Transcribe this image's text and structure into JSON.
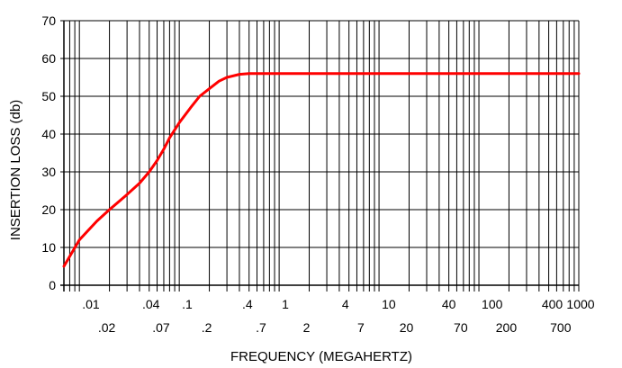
{
  "chart_data": {
    "type": "line",
    "x_scale": "log",
    "xlim": [
      0.007,
      1000
    ],
    "ylim": [
      0,
      70
    ],
    "grid": true,
    "xlabel": "FREQUENCY (MEGAHERTZ)",
    "ylabel": "INSERTION LOSS (db)",
    "y_ticks": [
      0,
      10,
      20,
      30,
      40,
      50,
      60,
      70
    ],
    "x_ticks_top": [
      0.01,
      0.04,
      0.1,
      0.4,
      1,
      4,
      10,
      40,
      100,
      400,
      1000
    ],
    "x_ticks_bottom": [
      0.02,
      0.07,
      0.2,
      0.7,
      2,
      7,
      20,
      70,
      200,
      700
    ],
    "x_tick_labels_top": [
      ".01",
      ".04",
      ".1",
      ".4",
      "1",
      "4",
      "10",
      "40",
      "100",
      "400",
      "1000"
    ],
    "x_tick_labels_bottom": [
      ".02",
      ".07",
      ".2",
      ".7",
      "2",
      "7",
      "20",
      "70",
      "200",
      "700"
    ],
    "y_tick_labels": [
      "0",
      "10",
      "20",
      "30",
      "40",
      "50",
      "60",
      "70"
    ],
    "line_color": "#ff0000",
    "series": [
      {
        "x": [
          0.007,
          0.01,
          0.015,
          0.02,
          0.03,
          0.04,
          0.05,
          0.06,
          0.07,
          0.08,
          0.1,
          0.13,
          0.16,
          0.2,
          0.25,
          0.3,
          0.4,
          0.5,
          0.6,
          0.7,
          1,
          2,
          5,
          10,
          100,
          1000
        ],
        "y": [
          5,
          12,
          17,
          20,
          24,
          27,
          30,
          33,
          36,
          39,
          43,
          47,
          50,
          52,
          54,
          55,
          55.8,
          56,
          56,
          56,
          56,
          56,
          56,
          56,
          56,
          56
        ]
      }
    ]
  }
}
